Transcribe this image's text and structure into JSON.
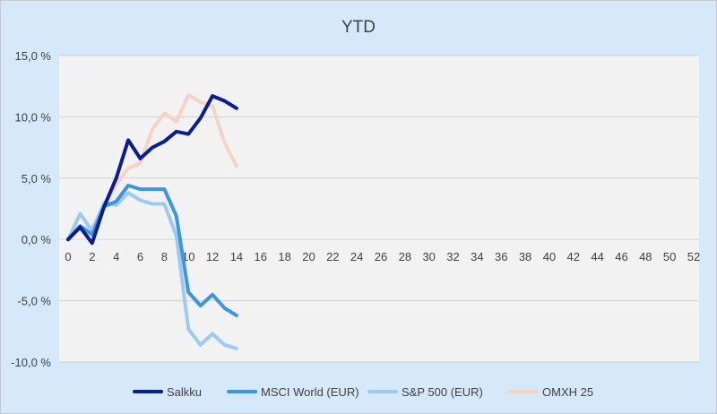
{
  "chart_data": {
    "type": "line",
    "title": "YTD",
    "xlabel": "",
    "ylabel": "",
    "x_ticks": [
      0,
      2,
      4,
      6,
      8,
      10,
      12,
      14,
      16,
      18,
      20,
      22,
      24,
      26,
      28,
      30,
      32,
      34,
      36,
      38,
      40,
      42,
      44,
      46,
      48,
      50,
      52
    ],
    "xlim": [
      0,
      52
    ],
    "ylim": [
      -10,
      15
    ],
    "y_ticks": [
      -10,
      -5,
      0,
      5,
      10,
      15
    ],
    "y_tick_labels": [
      "-10,0 %",
      "-5,0 %",
      "0,0 %",
      "5,0 %",
      "10,0 %",
      "15,0 %"
    ],
    "grid": "horizontal",
    "legend_position": "bottom",
    "series": [
      {
        "name": "Salkku",
        "color": "#0a1f8f",
        "x": [
          0,
          1,
          2,
          3,
          4,
          5,
          6,
          7,
          8,
          9,
          10,
          11,
          12,
          13,
          14
        ],
        "values": [
          0,
          1.0,
          -0.3,
          2.7,
          5.0,
          8.1,
          6.6,
          7.5,
          8.0,
          8.8,
          8.6,
          9.9,
          11.7,
          11.3,
          10.7
        ]
      },
      {
        "name": "MSCI World (EUR)",
        "color": "#3b95e3",
        "x": [
          0,
          1,
          2,
          3,
          4,
          5,
          6,
          7,
          8,
          9,
          10,
          11,
          12,
          13,
          14
        ],
        "values": [
          0,
          1.1,
          0.4,
          2.7,
          3.1,
          4.4,
          4.1,
          4.1,
          4.1,
          1.9,
          -4.3,
          -5.4,
          -4.5,
          -5.6,
          -6.2
        ]
      },
      {
        "name": "S&P 500 (EUR)",
        "color": "#9dcbf0",
        "x": [
          0,
          1,
          2,
          3,
          4,
          5,
          6,
          7,
          8,
          9,
          10,
          11,
          12,
          13,
          14
        ],
        "values": [
          0,
          2.1,
          0.7,
          3.0,
          2.8,
          3.8,
          3.2,
          2.9,
          2.9,
          0.3,
          -7.3,
          -8.6,
          -7.7,
          -8.6,
          -8.9
        ]
      },
      {
        "name": "OMXH 25",
        "color": "#f6d3c4",
        "x": [
          0,
          1,
          2,
          3,
          4,
          5,
          6,
          7,
          8,
          9,
          10,
          11,
          12,
          13,
          14
        ],
        "values": [
          0,
          0.9,
          1.0,
          2.6,
          4.5,
          5.8,
          6.2,
          9.0,
          10.3,
          9.6,
          11.8,
          11.2,
          10.9,
          7.9,
          6.0
        ]
      }
    ]
  }
}
